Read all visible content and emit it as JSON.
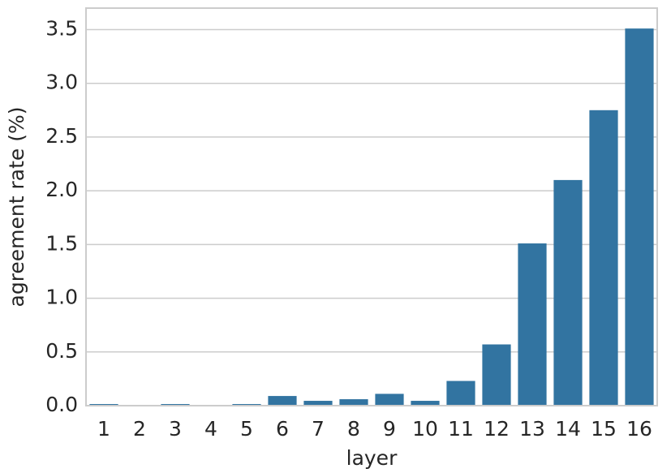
{
  "chart_data": {
    "type": "bar",
    "x_label": "layer",
    "y_label": "agreement rate (%)",
    "categories": [
      "1",
      "2",
      "3",
      "4",
      "5",
      "6",
      "7",
      "8",
      "9",
      "10",
      "11",
      "12",
      "13",
      "14",
      "15",
      "16"
    ],
    "values": [
      0.015,
      0.005,
      0.015,
      0.005,
      0.015,
      0.09,
      0.045,
      0.06,
      0.11,
      0.045,
      0.23,
      0.57,
      1.51,
      2.1,
      2.75,
      3.51
    ],
    "color": "#3274a1",
    "ylim": [
      0,
      3.7
    ],
    "yticks": [
      {
        "value": 0,
        "label": "0.0"
      },
      0.5,
      {
        "value": 1,
        "label": "1.0"
      },
      1.5,
      {
        "value": 2,
        "label": "2.0"
      },
      2.5,
      {
        "value": 3,
        "label": "3.0"
      },
      3.5
    ],
    "grid": true
  }
}
